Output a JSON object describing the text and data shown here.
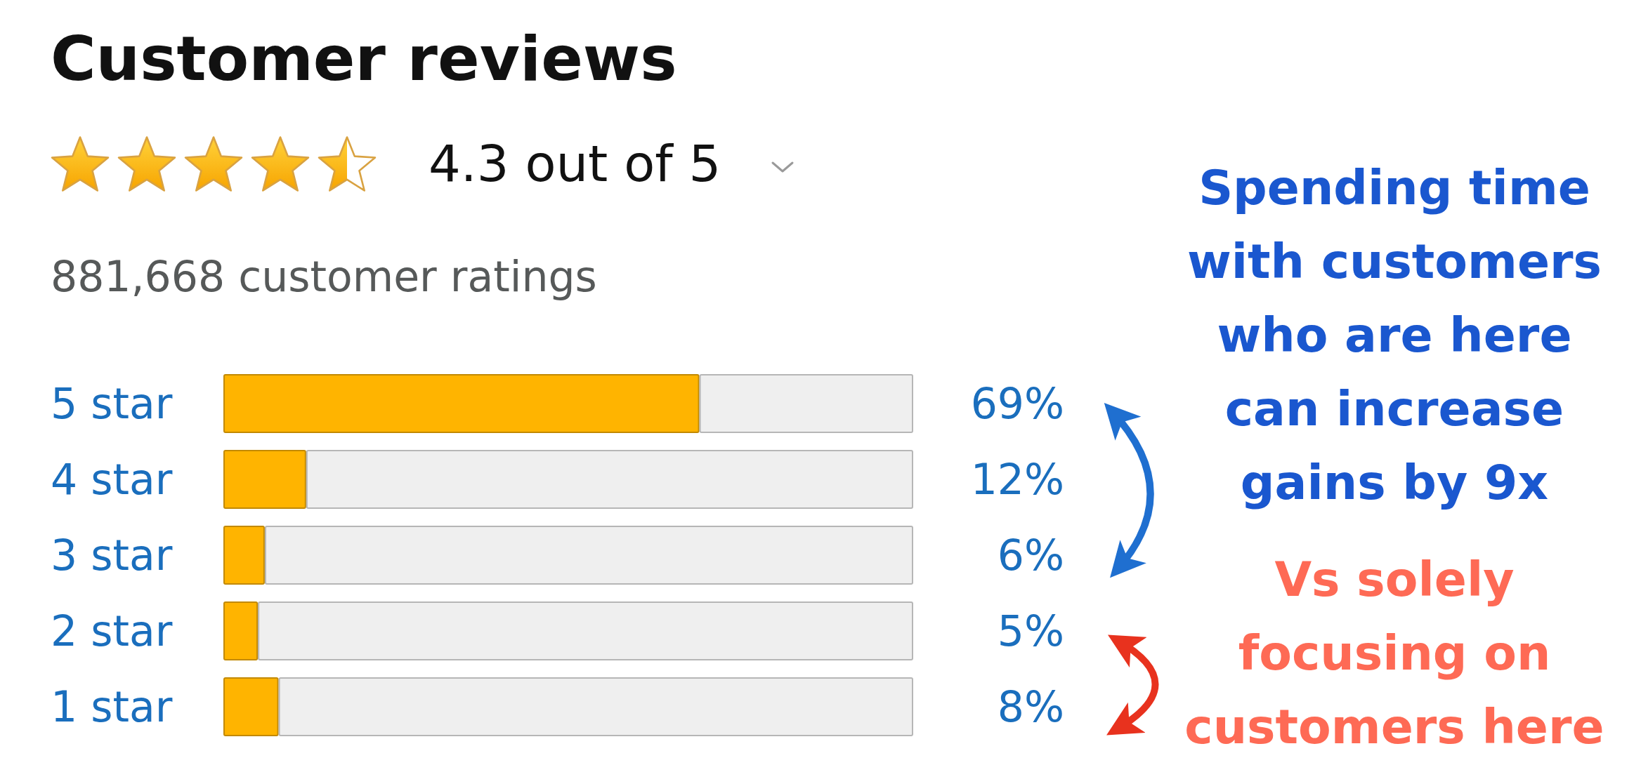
{
  "chart_data": {
    "type": "bar",
    "orientation": "horizontal",
    "stacked": true,
    "title": "Customer reviews",
    "annotations": [
      "4.3 out of 5",
      "881,668 customer ratings",
      "Spending time with customers who are here can increase gains by 9x",
      "Vs solely focusing on customers here"
    ],
    "categories": [
      "5 star",
      "4 star",
      "3 star",
      "2 star",
      "1 star"
    ],
    "series": [
      {
        "color": "#ffb400",
        "values": [
          69,
          12,
          6,
          5,
          8
        ],
        "value_labels": [
          "69%",
          "12%",
          "6%",
          "5%",
          "8%"
        ]
      },
      {
        "color": "#efefef",
        "values": [
          31,
          88,
          94,
          95,
          92
        ]
      }
    ],
    "tick_labels": "y"
  }
}
